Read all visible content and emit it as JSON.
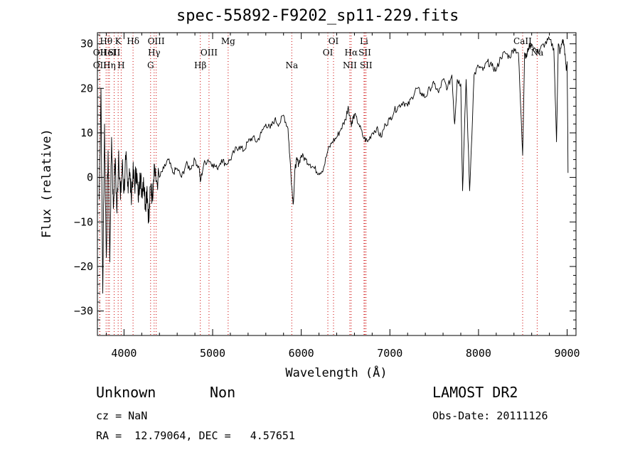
{
  "chart_data": {
    "type": "line",
    "title": "spec-55892-F9202_sp11-229.fits",
    "xlabel": "Wavelength (Å)",
    "ylabel": "Flux (relative)",
    "xlim": [
      3700,
      9100
    ],
    "ylim": [
      -35.5,
      32.5
    ],
    "xticks": [
      4000,
      5000,
      6000,
      7000,
      8000,
      9000
    ],
    "xtick_labels": [
      "4000",
      "5000",
      "6000",
      "7000",
      "8000",
      "9000"
    ],
    "yticks": [
      -30,
      -20,
      -10,
      0,
      10,
      20,
      30
    ],
    "ytick_labels": [
      "−30",
      "−20",
      "−10",
      "0",
      "10",
      "20",
      "30"
    ],
    "grid": false,
    "series": [
      {
        "x": [
          3720,
          3740,
          3760,
          3780,
          3800,
          3820,
          3840,
          3860,
          3880,
          3900,
          3920,
          3940,
          3960,
          3980,
          4000,
          4020,
          4040,
          4060,
          4080,
          4100,
          4120,
          4140,
          4160,
          4180,
          4200,
          4220,
          4240,
          4260,
          4280,
          4300,
          4320,
          4340,
          4360,
          4400,
          4450,
          4500,
          4550,
          4600,
          4650,
          4700,
          4750,
          4800,
          4850,
          4861,
          4900,
          4950,
          5000,
          5050,
          5100,
          5150,
          5200,
          5250,
          5300,
          5350,
          5400,
          5450,
          5500,
          5550,
          5600,
          5650,
          5700,
          5750,
          5800,
          5850,
          5870,
          5893,
          5910,
          5930,
          5950,
          5970,
          6000,
          6050,
          6100,
          6150,
          6200,
          6250,
          6300,
          6350,
          6400,
          6450,
          6500,
          6530,
          6563,
          6580,
          6600,
          6650,
          6700,
          6750,
          6800,
          6850,
          6900,
          6950,
          7000,
          7050,
          7100,
          7150,
          7200,
          7250,
          7300,
          7350,
          7400,
          7450,
          7500,
          7550,
          7600,
          7650,
          7700,
          7730,
          7760,
          7800,
          7820,
          7860,
          7900,
          7950,
          8000,
          8050,
          8100,
          8150,
          8200,
          8250,
          8300,
          8350,
          8400,
          8450,
          8498,
          8520,
          8542,
          8560,
          8600,
          8662,
          8700,
          8750,
          8800,
          8850,
          8880,
          8900,
          8920,
          8950,
          8970,
          8990,
          9000,
          9010
        ],
        "y": [
          -5,
          20,
          -26,
          12,
          -18,
          6,
          -19,
          9,
          -7,
          4,
          -8,
          6,
          -5,
          3,
          -3,
          4,
          -2,
          2,
          -4,
          1,
          -2,
          2,
          -5,
          1,
          -3,
          0,
          -6,
          -2,
          -10,
          -2,
          -4,
          3,
          -1,
          0,
          2,
          4,
          1,
          2,
          0,
          3,
          2,
          4,
          2,
          -1,
          3,
          4,
          3,
          2,
          4,
          3,
          4,
          6,
          7,
          6,
          8,
          9,
          8,
          10,
          12,
          11,
          13,
          12,
          14,
          11,
          5,
          -2,
          -6,
          2,
          4,
          3,
          5,
          4,
          3,
          2,
          1,
          2,
          6,
          8,
          9,
          11,
          13,
          16,
          12,
          13,
          14,
          12,
          9,
          8,
          10,
          11,
          9,
          12,
          13,
          15,
          16,
          17,
          16,
          18,
          20,
          19,
          18,
          20,
          21,
          19,
          22,
          20,
          23,
          12,
          22,
          21,
          -3,
          22,
          -3,
          23,
          25,
          24,
          26,
          25,
          24,
          27,
          28,
          27,
          29,
          28,
          5,
          28,
          27,
          29,
          30,
          28,
          29,
          30,
          31,
          29,
          8,
          30,
          28,
          31,
          29,
          24,
          26,
          1
        ]
      }
    ],
    "lines": [
      {
        "wavelength": 3727,
        "label": "OII",
        "row": 2
      },
      {
        "wavelength": 3727,
        "label": "OII",
        "row": 1
      },
      {
        "wavelength": 3798,
        "label": "Hθ",
        "row": 0
      },
      {
        "wavelength": 3820,
        "label": "HeI",
        "row": 1
      },
      {
        "wavelength": 3835,
        "label": "Hη",
        "row": 2
      },
      {
        "wavelength": 3889,
        "label": "SII",
        "row": 1
      },
      {
        "wavelength": 3934,
        "label": "K",
        "row": 0
      },
      {
        "wavelength": 3968,
        "label": "H",
        "row": 2
      },
      {
        "wavelength": 4102,
        "label": "Hδ",
        "row": 0
      },
      {
        "wavelength": 4300,
        "label": "G",
        "row": 2
      },
      {
        "wavelength": 4340,
        "label": "Hγ",
        "row": 1
      },
      {
        "wavelength": 4363,
        "label": "OIII",
        "row": 0
      },
      {
        "wavelength": 4861,
        "label": "Hβ",
        "row": 2
      },
      {
        "wavelength": 4959,
        "label": "OIII",
        "row": 1
      },
      {
        "wavelength": 5175,
        "label": "Mg",
        "row": 0
      },
      {
        "wavelength": 5893,
        "label": "Na",
        "row": 2
      },
      {
        "wavelength": 6300,
        "label": "OI",
        "row": 1
      },
      {
        "wavelength": 6364,
        "label": "OI",
        "row": 0
      },
      {
        "wavelength": 6548,
        "label": "NII",
        "row": 2
      },
      {
        "wavelength": 6563,
        "label": "Hα",
        "row": 1
      },
      {
        "wavelength": 6708,
        "label": "Li",
        "row": 0
      },
      {
        "wavelength": 6717,
        "label": "SII",
        "row": 1
      },
      {
        "wavelength": 6731,
        "label": "SII",
        "row": 2
      },
      {
        "wavelength": 8498,
        "label": "CaII",
        "row": 0
      },
      {
        "wavelength": 8662,
        "label": "Na",
        "row": 1
      }
    ],
    "line_colors": {
      "marker": "#cc0000",
      "spectrum": "#000000"
    }
  },
  "info": {
    "class": "Unknown",
    "subclass": "Non",
    "redshift": "cz = NaN",
    "coords": "RA =  12.79064, DEC =   4.57651",
    "survey": "LAMOST DR2",
    "obs_date": "Obs-Date: 20111126"
  }
}
